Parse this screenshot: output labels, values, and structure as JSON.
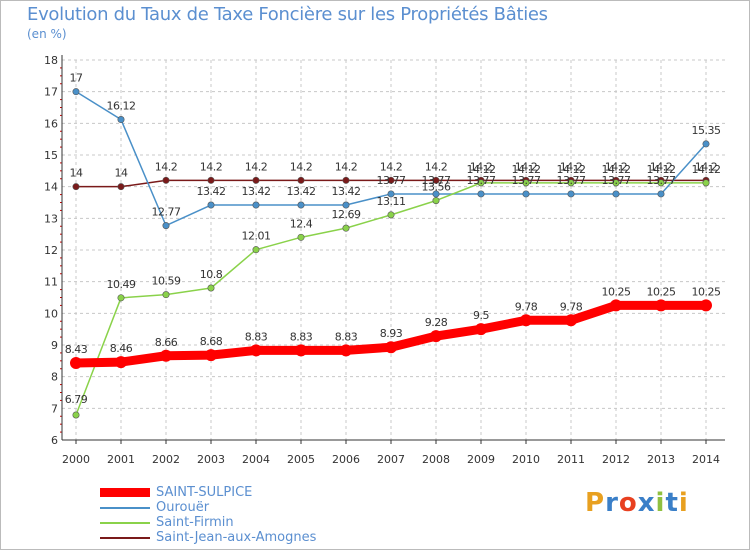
{
  "chart_data": {
    "type": "line",
    "title": "Evolution du Taux de Taxe Foncière sur les Propriétés Bâties",
    "unit": "(en %)",
    "x": [
      "2000",
      "2001",
      "2002",
      "2003",
      "2004",
      "2005",
      "2006",
      "2007",
      "2008",
      "2009",
      "2010",
      "2011",
      "2012",
      "2013",
      "2014"
    ],
    "ylim": [
      6,
      18
    ],
    "yticks": [
      "6",
      "7",
      "8",
      "9",
      "10",
      "11",
      "12",
      "13",
      "14",
      "15",
      "16",
      "17",
      "18"
    ],
    "series": [
      {
        "name": "SAINT-SULPICE",
        "color": "#ff0000",
        "values": [
          8.43,
          8.46,
          8.66,
          8.68,
          8.83,
          8.83,
          8.83,
          8.93,
          9.28,
          9.5,
          9.78,
          9.78,
          10.25,
          10.25,
          10.25
        ],
        "labels": [
          "8.43",
          "8.46",
          "8.66",
          "8.68",
          "8.83",
          "8.83",
          "8.83",
          "8.93",
          "9.28",
          "9.5",
          "9.78",
          "9.78",
          "10.25",
          "10.25",
          "10.25"
        ]
      },
      {
        "name": "Ourouër",
        "color": "#4a90c8",
        "values": [
          17,
          16.12,
          12.77,
          13.42,
          13.42,
          13.42,
          13.42,
          13.77,
          13.77,
          13.77,
          13.77,
          13.77,
          13.77,
          13.77,
          15.35
        ],
        "labels": [
          "17",
          "16.12",
          "12.77",
          "13.42",
          "13.42",
          "13.42",
          "13.42",
          "13.77",
          "13.77",
          "13.77",
          "13.77",
          "13.77",
          "13.77",
          "13.77",
          "15.35"
        ]
      },
      {
        "name": "Saint-Firmin",
        "color": "#8ad24a",
        "values": [
          6.79,
          10.49,
          10.59,
          10.8,
          12.01,
          12.4,
          12.69,
          13.11,
          13.56,
          14.12,
          14.12,
          14.12,
          14.12,
          14.12,
          14.12
        ],
        "labels": [
          "6.79",
          "10.49",
          "10.59",
          "10.8",
          "12.01",
          "12.4",
          "12.69",
          "13.11",
          "13.56",
          "14.12",
          "14.12",
          "14.12",
          "14.12",
          "14.12",
          "14.12"
        ]
      },
      {
        "name": "Saint-Jean-aux-Amognes",
        "color": "#7a1a1a",
        "values": [
          14,
          14,
          14.2,
          14.2,
          14.2,
          14.2,
          14.2,
          14.2,
          14.2,
          14.2,
          14.2,
          14.2,
          14.2,
          14.2,
          14.2
        ],
        "labels": [
          "14",
          "14",
          "14.2",
          "14.2",
          "14.2",
          "14.2",
          "14.2",
          "14.2",
          "14.2",
          "14.2",
          "14.2",
          "14.2",
          "14.2",
          "14.2",
          "14.2"
        ]
      }
    ],
    "grid": true,
    "legend_position": "bottom-left"
  },
  "logo": {
    "text": "Proxiti"
  }
}
